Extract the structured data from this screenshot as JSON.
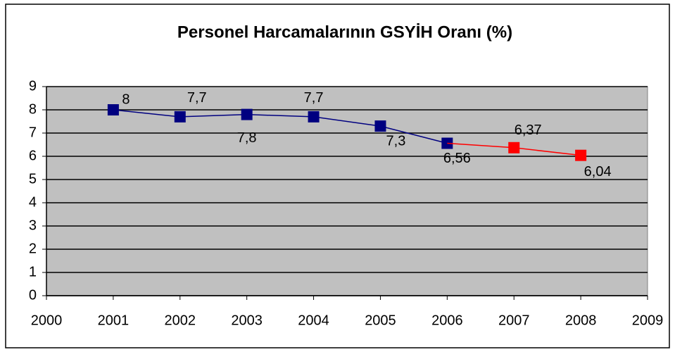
{
  "chart_data": {
    "type": "line",
    "title": "Personel Harcamalarının GSYİH Oranı (%)",
    "series": [
      {
        "color": "#000080",
        "x": [
          2001,
          2002,
          2003,
          2004,
          2005,
          2006
        ],
        "values": [
          8,
          7.7,
          7.8,
          7.7,
          7.3,
          6.56
        ],
        "value_labels": [
          "8",
          "7,7",
          "7,8",
          "7,7",
          "7,3",
          "6,56"
        ]
      },
      {
        "color": "#ff0000",
        "x": [
          2007,
          2008
        ],
        "values": [
          6.37,
          6.04
        ],
        "value_labels": [
          "6,37",
          "6,04"
        ]
      }
    ],
    "xlim": [
      2000,
      2009
    ],
    "xticks": [
      2000,
      2001,
      2002,
      2003,
      2004,
      2005,
      2006,
      2007,
      2008,
      2009
    ],
    "ylim": [
      0,
      9
    ],
    "yticks": [
      0,
      1,
      2,
      3,
      4,
      5,
      6,
      7,
      8,
      9
    ],
    "grid": true
  }
}
